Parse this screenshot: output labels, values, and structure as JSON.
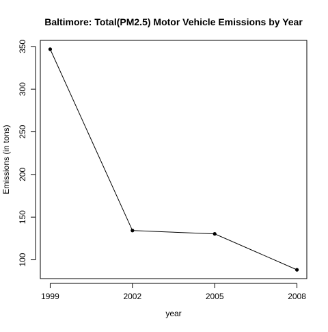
{
  "chart_data": {
    "type": "line",
    "title": "Baltimore: Total(PM2.5) Motor Vehicle Emissions by Year",
    "xlabel": "year",
    "ylabel": "Emissions (in tons)",
    "x": [
      1999,
      2002,
      2005,
      2008
    ],
    "x_tick_labels": [
      "1999",
      "2002",
      "2005",
      "2008"
    ],
    "series": [
      {
        "name": "Emissions",
        "values": [
          346.8,
          134.3,
          130.4,
          88.3
        ],
        "marker": "filled-circle",
        "color": "#000000"
      }
    ],
    "xlim": [
      1998.64,
      2008.36
    ],
    "ylim": [
      77.96,
      357.14
    ],
    "y_ticks": [
      100,
      150,
      200,
      250,
      300,
      350
    ],
    "y_tick_labels": [
      "100",
      "150",
      "200",
      "250",
      "300",
      "350"
    ],
    "grid": false,
    "legend": "none",
    "box": true
  }
}
